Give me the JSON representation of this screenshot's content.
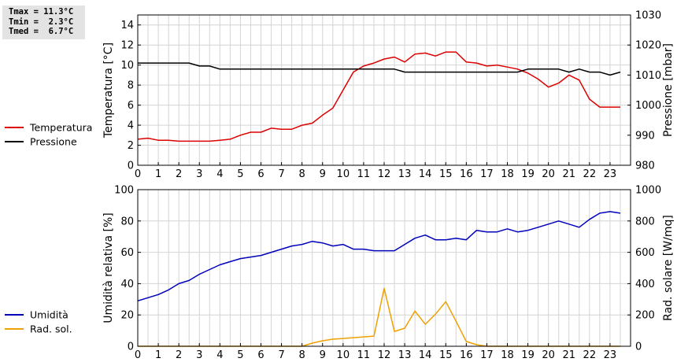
{
  "stats": {
    "tmax": "Tmax = 11.3°C",
    "tmin": "Tmin =  2.3°C",
    "tmed": "Tmed =  6.7°C"
  },
  "chart_data": [
    {
      "type": "line",
      "ylabel": "Temperatura [°C]",
      "y2label": "Pressione [mbar]",
      "ylim": [
        0,
        15
      ],
      "y2lim": [
        980,
        1030
      ],
      "yticks": [
        0,
        2,
        4,
        6,
        8,
        10,
        12,
        14
      ],
      "y2ticks": [
        980,
        990,
        1000,
        1010,
        1020,
        1030
      ],
      "xticks": [
        0,
        1,
        2,
        3,
        4,
        5,
        6,
        7,
        8,
        9,
        10,
        11,
        12,
        13,
        14,
        15,
        16,
        17,
        18,
        19,
        20,
        21,
        22,
        23
      ],
      "xlim": [
        0,
        24
      ],
      "grid": true,
      "legend_position": "left",
      "series": [
        {
          "name": "Temperatura",
          "axis": "left",
          "color": "#dd0000",
          "x": [
            0,
            0.5,
            1,
            1.5,
            2,
            2.5,
            3,
            3.5,
            4,
            4.5,
            5,
            5.5,
            6,
            6.5,
            7,
            7.5,
            8,
            8.5,
            9,
            9.5,
            10,
            10.5,
            11,
            11.5,
            12,
            12.5,
            13,
            13.5,
            14,
            14.5,
            15,
            15.5,
            16,
            16.5,
            17,
            17.5,
            18,
            18.5,
            19,
            19.5,
            20,
            20.5,
            21,
            21.5,
            22,
            22.5,
            23,
            23.5
          ],
          "values": [
            2.6,
            2.7,
            2.5,
            2.5,
            2.4,
            2.4,
            2.4,
            2.4,
            2.5,
            2.6,
            3.0,
            3.3,
            3.3,
            3.7,
            3.6,
            3.6,
            4.0,
            4.2,
            5.0,
            5.7,
            7.5,
            9.3,
            9.9,
            10.2,
            10.6,
            10.8,
            10.3,
            11.1,
            11.2,
            10.9,
            11.3,
            11.3,
            10.3,
            10.2,
            9.9,
            10.0,
            9.8,
            9.6,
            9.2,
            8.6,
            7.8,
            8.2,
            9.0,
            8.5,
            6.6,
            5.8,
            5.8,
            5.8
          ]
        },
        {
          "name": "Pressione",
          "axis": "right",
          "color": "#000000",
          "x": [
            0,
            0.5,
            1,
            1.5,
            2,
            2.5,
            3,
            3.5,
            4,
            4.5,
            5,
            5.5,
            6,
            6.5,
            7,
            7.5,
            8,
            8.5,
            9,
            9.5,
            10,
            10.5,
            11,
            11.5,
            12,
            12.5,
            13,
            13.5,
            14,
            14.5,
            15,
            15.5,
            16,
            16.5,
            17,
            17.5,
            18,
            18.5,
            19,
            19.5,
            20,
            20.5,
            21,
            21.5,
            22,
            22.5,
            23,
            23.5
          ],
          "values": [
            1014,
            1014,
            1014,
            1014,
            1014,
            1014,
            1013,
            1013,
            1012,
            1012,
            1012,
            1012,
            1012,
            1012,
            1012,
            1012,
            1012,
            1012,
            1012,
            1012,
            1012,
            1012,
            1012,
            1012,
            1012,
            1012,
            1011,
            1011,
            1011,
            1011,
            1011,
            1011,
            1011,
            1011,
            1011,
            1011,
            1011,
            1011,
            1012,
            1012,
            1012,
            1012,
            1011,
            1012,
            1011,
            1011,
            1010,
            1011
          ]
        }
      ]
    },
    {
      "type": "line",
      "ylabel": "Umidità relativa [%]",
      "y2label": "Rad. solare [W/mq]",
      "ylim": [
        0,
        100
      ],
      "y2lim": [
        0,
        1000
      ],
      "yticks": [
        0,
        20,
        40,
        60,
        80,
        100
      ],
      "y2ticks": [
        0,
        200,
        400,
        600,
        800,
        1000
      ],
      "xticks": [
        0,
        1,
        2,
        3,
        4,
        5,
        6,
        7,
        8,
        9,
        10,
        11,
        12,
        13,
        14,
        15,
        16,
        17,
        18,
        19,
        20,
        21,
        22,
        23
      ],
      "xlim": [
        0,
        24
      ],
      "grid": true,
      "legend_position": "left",
      "series": [
        {
          "name": "Umidità",
          "axis": "left",
          "color": "#0000bb",
          "x": [
            0,
            0.5,
            1,
            1.5,
            2,
            2.5,
            3,
            3.5,
            4,
            4.5,
            5,
            5.5,
            6,
            6.5,
            7,
            7.5,
            8,
            8.5,
            9,
            9.5,
            10,
            10.5,
            11,
            11.5,
            12,
            12.5,
            13,
            13.5,
            14,
            14.5,
            15,
            15.5,
            16,
            16.5,
            17,
            17.5,
            18,
            18.5,
            19,
            19.5,
            20,
            20.5,
            21,
            21.5,
            22,
            22.5,
            23,
            23.5
          ],
          "values": [
            29,
            31,
            33,
            36,
            40,
            42,
            46,
            49,
            52,
            54,
            56,
            57,
            58,
            60,
            62,
            64,
            65,
            67,
            66,
            64,
            65,
            62,
            62,
            61,
            61,
            61,
            65,
            69,
            71,
            68,
            68,
            69,
            68,
            74,
            73,
            73,
            75,
            73,
            74,
            76,
            78,
            80,
            78,
            76,
            81,
            85,
            86,
            85
          ]
        },
        {
          "name": "Rad. sol.",
          "axis": "right",
          "color": "#f0a000",
          "x": [
            0,
            1,
            2,
            3,
            4,
            5,
            6,
            7,
            8,
            8.5,
            9,
            9.5,
            10,
            10.5,
            11,
            11.5,
            12,
            12.5,
            13,
            13.5,
            14,
            14.5,
            15,
            15.5,
            16,
            16.5,
            17,
            18,
            19,
            20,
            21,
            22,
            23,
            23.5
          ],
          "values": [
            0,
            0,
            0,
            0,
            0,
            0,
            0,
            0,
            0,
            20,
            35,
            45,
            50,
            55,
            60,
            65,
            370,
            95,
            115,
            225,
            140,
            205,
            285,
            160,
            30,
            10,
            0,
            0,
            0,
            0,
            0,
            0,
            0,
            0
          ]
        }
      ]
    }
  ]
}
